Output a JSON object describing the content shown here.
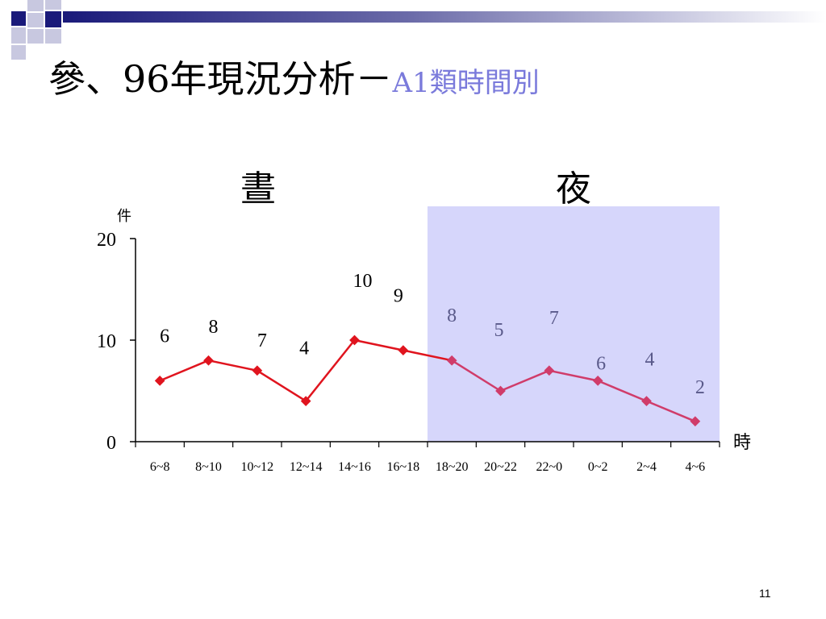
{
  "slide": {
    "title_main": "參、96年現況分析－",
    "title_sub": "A1類時間別",
    "day_label": "晝",
    "night_label": "夜",
    "page_number": "11"
  },
  "colors": {
    "line": "#e0141e",
    "line_night": "#d03c6a",
    "night_band": "#d6d6fb",
    "night_label_color": "#5a5a8a",
    "title_accent": "#7a7adb"
  },
  "chart_data": {
    "type": "line",
    "title": "",
    "xlabel": "時",
    "ylabel": "件",
    "categories": [
      "6~8",
      "8~10",
      "10~12",
      "12~14",
      "14~16",
      "16~18",
      "18~20",
      "20~22",
      "22~0",
      "0~2",
      "2~4",
      "4~6"
    ],
    "values": [
      6,
      8,
      7,
      4,
      10,
      9,
      8,
      5,
      7,
      6,
      4,
      2
    ],
    "ylim": [
      0,
      20
    ],
    "yticks": [
      0,
      10,
      20
    ],
    "grid": false,
    "legend": "none",
    "night_start_index": 6
  }
}
